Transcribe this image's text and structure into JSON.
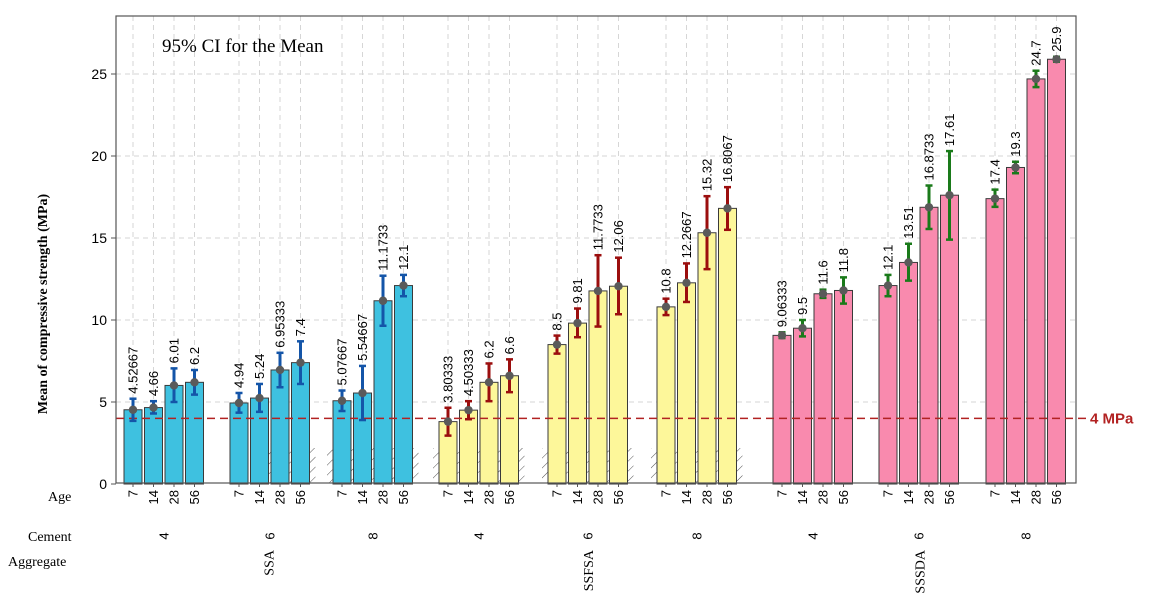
{
  "chart_data": {
    "type": "bar",
    "annotation": "95% CI for the Mean",
    "ylabel": "Mean of compressive strength (MPa)",
    "ylim": [
      0,
      28
    ],
    "yticks": [
      0,
      5,
      10,
      15,
      20,
      25
    ],
    "grid": true,
    "reference_line": {
      "value": 4,
      "label": "4 MPa",
      "color": "#b22222"
    },
    "row_labels": {
      "age": "Age",
      "cement": "Cement",
      "aggregate": "Aggregate"
    },
    "colors": {
      "SSA": "#3ec1e0",
      "SSFSA": "#fdf79a",
      "SSSDA": "#f98aae",
      "SSA_ci": "#1455a8",
      "SSFSA_ci": "#9b0e0e",
      "SSSDA_ci": "#1a7a1a",
      "point": "#5a5a5a"
    },
    "groups": [
      {
        "aggregate": "SSA",
        "cement": "4",
        "bars": [
          {
            "age": "7",
            "mean": 4.52667,
            "label": "4.52667",
            "lo": 3.85,
            "hi": 5.2
          },
          {
            "age": "14",
            "mean": 4.66,
            "label": "4.66",
            "lo": 4.3,
            "hi": 5.05
          },
          {
            "age": "28",
            "mean": 6.01,
            "label": "6.01",
            "lo": 5.0,
            "hi": 7.05
          },
          {
            "age": "56",
            "mean": 6.2,
            "label": "6.2",
            "lo": 5.45,
            "hi": 6.95
          }
        ]
      },
      {
        "aggregate": "SSA",
        "cement": "6",
        "bars": [
          {
            "age": "7",
            "mean": 4.94,
            "label": "4.94",
            "lo": 4.35,
            "hi": 5.55
          },
          {
            "age": "14",
            "mean": 5.24,
            "label": "5.24",
            "lo": 4.4,
            "hi": 6.1
          },
          {
            "age": "28",
            "mean": 6.95333,
            "label": "6.95333",
            "lo": 5.9,
            "hi": 8.0
          },
          {
            "age": "56",
            "mean": 7.4,
            "label": "7.4",
            "lo": 6.1,
            "hi": 8.7
          }
        ],
        "hatch_from": 2
      },
      {
        "aggregate": "SSA",
        "cement": "8",
        "bars": [
          {
            "age": "7",
            "mean": 5.07667,
            "label": "5.07667",
            "lo": 4.45,
            "hi": 5.7
          },
          {
            "age": "14",
            "mean": 5.54667,
            "label": "5.54667",
            "lo": 3.9,
            "hi": 7.2
          },
          {
            "age": "28",
            "mean": 11.1733,
            "label": "11.1733",
            "lo": 9.65,
            "hi": 12.7
          },
          {
            "age": "56",
            "mean": 12.1,
            "label": "12.1",
            "lo": 11.45,
            "hi": 12.75
          }
        ],
        "hatch_from": 0
      },
      {
        "aggregate": "SSFSA",
        "cement": "4",
        "bars": [
          {
            "age": "7",
            "mean": 3.80333,
            "label": "3.80333",
            "lo": 2.95,
            "hi": 4.65
          },
          {
            "age": "14",
            "mean": 4.50333,
            "label": "4.50333",
            "lo": 3.95,
            "hi": 5.05
          },
          {
            "age": "28",
            "mean": 6.2,
            "label": "6.2",
            "lo": 5.05,
            "hi": 7.35
          },
          {
            "age": "56",
            "mean": 6.6,
            "label": "6.6",
            "lo": 5.6,
            "hi": 7.6
          }
        ],
        "hatch_from": 0
      },
      {
        "aggregate": "SSFSA",
        "cement": "6",
        "bars": [
          {
            "age": "7",
            "mean": 8.5,
            "label": "8.5",
            "lo": 7.95,
            "hi": 9.05
          },
          {
            "age": "14",
            "mean": 9.81,
            "label": "9.81",
            "lo": 8.95,
            "hi": 10.7
          },
          {
            "age": "28",
            "mean": 11.7733,
            "label": "11.7733",
            "lo": 9.6,
            "hi": 13.95
          },
          {
            "age": "56",
            "mean": 12.06,
            "label": "12.06",
            "lo": 10.35,
            "hi": 13.8
          }
        ],
        "hatch_from": 0
      },
      {
        "aggregate": "SSFSA",
        "cement": "8",
        "bars": [
          {
            "age": "7",
            "mean": 10.8,
            "label": "10.8",
            "lo": 10.3,
            "hi": 11.3
          },
          {
            "age": "14",
            "mean": 12.2667,
            "label": "12.2667",
            "lo": 11.1,
            "hi": 13.45
          },
          {
            "age": "28",
            "mean": 15.32,
            "label": "15.32",
            "lo": 13.1,
            "hi": 17.55
          },
          {
            "age": "56",
            "mean": 16.8067,
            "label": "16.8067",
            "lo": 15.5,
            "hi": 18.1
          }
        ],
        "hatch_from": 0
      },
      {
        "aggregate": "SSSDA",
        "cement": "4",
        "bars": [
          {
            "age": "7",
            "mean": 9.06333,
            "label": "9.06333",
            "lo": 8.9,
            "hi": 9.25
          },
          {
            "age": "14",
            "mean": 9.5,
            "label": "9.5",
            "lo": 9.0,
            "hi": 10.0
          },
          {
            "age": "28",
            "mean": 11.6,
            "label": "11.6",
            "lo": 11.35,
            "hi": 11.85
          },
          {
            "age": "56",
            "mean": 11.8,
            "label": "11.8",
            "lo": 11.0,
            "hi": 12.6
          }
        ]
      },
      {
        "aggregate": "SSSDA",
        "cement": "6",
        "bars": [
          {
            "age": "7",
            "mean": 12.1,
            "label": "12.1",
            "lo": 11.45,
            "hi": 12.75
          },
          {
            "age": "14",
            "mean": 13.51,
            "label": "13.51",
            "lo": 12.4,
            "hi": 14.65
          },
          {
            "age": "28",
            "mean": 16.8733,
            "label": "16.8733",
            "lo": 15.55,
            "hi": 18.2
          },
          {
            "age": "56",
            "mean": 17.61,
            "label": "17.61",
            "lo": 14.9,
            "hi": 20.3
          }
        ]
      },
      {
        "aggregate": "SSSDA",
        "cement": "8",
        "bars": [
          {
            "age": "7",
            "mean": 17.4,
            "label": "17.4",
            "lo": 16.9,
            "hi": 17.95
          },
          {
            "age": "14",
            "mean": 19.3,
            "label": "19.3",
            "lo": 18.95,
            "hi": 19.65
          },
          {
            "age": "28",
            "mean": 24.7,
            "label": "24.7",
            "lo": 24.2,
            "hi": 25.2
          },
          {
            "age": "56",
            "mean": 25.9,
            "label": "25.9",
            "lo": 25.75,
            "hi": 26.05
          }
        ]
      }
    ]
  }
}
